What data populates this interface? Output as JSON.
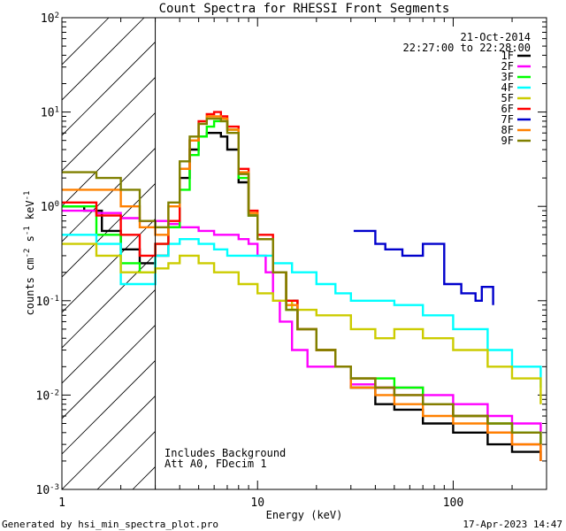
{
  "chart_data": {
    "type": "line",
    "title": "Count Spectra for RHESSI Front Segments",
    "xlabel": "Energy (keV)",
    "ylabel_main": "counts cm",
    "ylabel_sup1": "-2",
    "ylabel_mid": " s",
    "ylabel_sup2": "-1",
    "ylabel_unit": " keV",
    "ylabel_sup3": "-1",
    "xscale": "log",
    "yscale": "log",
    "xlim": [
      1,
      300
    ],
    "ylim": [
      0.001,
      100
    ],
    "x_ticks": [
      {
        "v": 1,
        "label": "1"
      },
      {
        "v": 10,
        "label": "10"
      },
      {
        "v": 100,
        "label": "100"
      }
    ],
    "y_ticks": [
      {
        "v": 100,
        "base": "10",
        "exp": "2"
      },
      {
        "v": 10,
        "base": "10",
        "exp": "1"
      },
      {
        "v": 1,
        "base": "10",
        "exp": "0"
      },
      {
        "v": 0.1,
        "base": "10",
        "exp": "-1"
      },
      {
        "v": 0.01,
        "base": "10",
        "exp": "-2"
      },
      {
        "v": 0.001,
        "base": "10",
        "exp": "-3"
      }
    ],
    "excluded_region": [
      1,
      3
    ],
    "legend_position": "top-right",
    "date": "21-Oct-2014",
    "time_range": "22:27:00 to 22:28:00",
    "notes": [
      "Includes Background",
      "Att A0, FDecim 1"
    ],
    "footer_left": "Generated by hsi_min_spectra_plot.pro",
    "footer_right": "17-Apr-2023 14:47",
    "series": [
      {
        "name": "1F",
        "color": "#000000",
        "points": [
          [
            1,
            1.0
          ],
          [
            1.3,
            0.9
          ],
          [
            1.6,
            0.55
          ],
          [
            2.0,
            0.35
          ],
          [
            2.5,
            0.25
          ],
          [
            3,
            0.3
          ],
          [
            3.5,
            0.6
          ],
          [
            4,
            2.0
          ],
          [
            4.5,
            4.0
          ],
          [
            5,
            5.5
          ],
          [
            5.5,
            6.0
          ],
          [
            6,
            6.0
          ],
          [
            6.5,
            5.5
          ],
          [
            7,
            4.0
          ],
          [
            8,
            1.8
          ],
          [
            9,
            0.8
          ],
          [
            10,
            0.45
          ],
          [
            12,
            0.2
          ],
          [
            14,
            0.1
          ],
          [
            16,
            0.05
          ],
          [
            20,
            0.03
          ],
          [
            25,
            0.02
          ],
          [
            30,
            0.012
          ],
          [
            40,
            0.008
          ],
          [
            50,
            0.007
          ],
          [
            70,
            0.005
          ],
          [
            100,
            0.004
          ],
          [
            150,
            0.003
          ],
          [
            200,
            0.0025
          ],
          [
            280,
            0.002
          ]
        ]
      },
      {
        "name": "2F",
        "color": "#ff00ff",
        "points": [
          [
            1,
            0.9
          ],
          [
            1.5,
            0.85
          ],
          [
            2,
            0.75
          ],
          [
            2.5,
            0.7
          ],
          [
            3,
            0.7
          ],
          [
            3.5,
            0.65
          ],
          [
            4,
            0.6
          ],
          [
            5,
            0.55
          ],
          [
            6,
            0.5
          ],
          [
            7,
            0.5
          ],
          [
            8,
            0.45
          ],
          [
            9,
            0.4
          ],
          [
            10,
            0.3
          ],
          [
            11,
            0.2
          ],
          [
            12,
            0.1
          ],
          [
            13,
            0.06
          ],
          [
            15,
            0.03
          ],
          [
            18,
            0.02
          ],
          [
            20,
            0.02
          ],
          [
            30,
            0.013
          ],
          [
            40,
            0.012
          ],
          [
            50,
            0.012
          ],
          [
            70,
            0.01
          ],
          [
            100,
            0.008
          ],
          [
            150,
            0.006
          ],
          [
            200,
            0.005
          ],
          [
            280,
            0.004
          ]
        ]
      },
      {
        "name": "3F",
        "color": "#00ff00",
        "points": [
          [
            1,
            1.0
          ],
          [
            1.5,
            0.5
          ],
          [
            2,
            0.25
          ],
          [
            2.5,
            0.2
          ],
          [
            3,
            0.4
          ],
          [
            3.5,
            0.6
          ],
          [
            4,
            1.5
          ],
          [
            4.5,
            3.5
          ],
          [
            5,
            5.5
          ],
          [
            5.5,
            7.0
          ],
          [
            6,
            8.0
          ],
          [
            6.5,
            8.0
          ],
          [
            7,
            6.5
          ],
          [
            8,
            2.0
          ],
          [
            9,
            0.8
          ],
          [
            10,
            0.45
          ],
          [
            12,
            0.2
          ],
          [
            14,
            0.08
          ],
          [
            16,
            0.05
          ],
          [
            20,
            0.03
          ],
          [
            25,
            0.02
          ],
          [
            30,
            0.015
          ],
          [
            40,
            0.015
          ],
          [
            50,
            0.012
          ],
          [
            70,
            0.008
          ],
          [
            100,
            0.006
          ],
          [
            150,
            0.005
          ],
          [
            200,
            0.004
          ],
          [
            280,
            0.003
          ]
        ]
      },
      {
        "name": "4F",
        "color": "#00ffff",
        "points": [
          [
            1,
            0.5
          ],
          [
            1.5,
            0.4
          ],
          [
            2,
            0.15
          ],
          [
            2.5,
            0.15
          ],
          [
            3,
            0.3
          ],
          [
            3.5,
            0.4
          ],
          [
            4,
            0.45
          ],
          [
            5,
            0.4
          ],
          [
            6,
            0.35
          ],
          [
            7,
            0.3
          ],
          [
            8,
            0.3
          ],
          [
            10,
            0.3
          ],
          [
            12,
            0.25
          ],
          [
            15,
            0.2
          ],
          [
            20,
            0.15
          ],
          [
            25,
            0.12
          ],
          [
            30,
            0.1
          ],
          [
            40,
            0.1
          ],
          [
            50,
            0.09
          ],
          [
            70,
            0.07
          ],
          [
            100,
            0.05
          ],
          [
            150,
            0.03
          ],
          [
            200,
            0.02
          ],
          [
            280,
            0.012
          ]
        ]
      },
      {
        "name": "5F",
        "color": "#cccc00",
        "points": [
          [
            1,
            0.4
          ],
          [
            1.5,
            0.3
          ],
          [
            2,
            0.2
          ],
          [
            2.5,
            0.2
          ],
          [
            3,
            0.22
          ],
          [
            3.5,
            0.25
          ],
          [
            4,
            0.3
          ],
          [
            5,
            0.25
          ],
          [
            6,
            0.2
          ],
          [
            8,
            0.15
          ],
          [
            10,
            0.12
          ],
          [
            12,
            0.1
          ],
          [
            15,
            0.08
          ],
          [
            20,
            0.07
          ],
          [
            30,
            0.05
          ],
          [
            40,
            0.04
          ],
          [
            50,
            0.05
          ],
          [
            70,
            0.04
          ],
          [
            100,
            0.03
          ],
          [
            150,
            0.02
          ],
          [
            200,
            0.015
          ],
          [
            280,
            0.008
          ]
        ]
      },
      {
        "name": "6F",
        "color": "#ff0000",
        "points": [
          [
            1,
            1.1
          ],
          [
            1.5,
            0.8
          ],
          [
            2,
            0.5
          ],
          [
            2.5,
            0.3
          ],
          [
            3,
            0.4
          ],
          [
            3.5,
            0.7
          ],
          [
            4,
            2.5
          ],
          [
            4.5,
            5.0
          ],
          [
            5,
            8.0
          ],
          [
            5.5,
            9.5
          ],
          [
            6,
            10.0
          ],
          [
            6.5,
            9.0
          ],
          [
            7,
            7.0
          ],
          [
            8,
            2.5
          ],
          [
            9,
            0.9
          ],
          [
            10,
            0.5
          ],
          [
            12,
            0.2
          ],
          [
            14,
            0.1
          ],
          [
            16,
            0.05
          ],
          [
            20,
            0.03
          ],
          [
            25,
            0.02
          ],
          [
            30,
            0.015
          ],
          [
            40,
            0.012
          ],
          [
            50,
            0.01
          ],
          [
            70,
            0.008
          ],
          [
            100,
            0.006
          ],
          [
            150,
            0.004
          ],
          [
            200,
            0.003
          ],
          [
            280,
            0.002
          ]
        ]
      },
      {
        "name": "7F",
        "color": "#0000cc",
        "points": [
          [
            31,
            0.55
          ],
          [
            32,
            0.55
          ],
          [
            40,
            0.4
          ],
          [
            45,
            0.35
          ],
          [
            55,
            0.3
          ],
          [
            60,
            0.3
          ],
          [
            70,
            0.4
          ],
          [
            90,
            0.15
          ],
          [
            110,
            0.12
          ],
          [
            130,
            0.1
          ],
          [
            140,
            0.14
          ],
          [
            160,
            0.09
          ]
        ]
      },
      {
        "name": "8F",
        "color": "#ff8000",
        "points": [
          [
            1,
            1.5
          ],
          [
            1.5,
            1.5
          ],
          [
            2,
            1.0
          ],
          [
            2.5,
            0.6
          ],
          [
            3,
            0.5
          ],
          [
            3.5,
            1.0
          ],
          [
            4,
            2.5
          ],
          [
            4.5,
            5.0
          ],
          [
            5,
            7.5
          ],
          [
            5.5,
            9.0
          ],
          [
            6,
            9.0
          ],
          [
            6.5,
            8.5
          ],
          [
            7,
            6.5
          ],
          [
            8,
            2.3
          ],
          [
            9,
            0.85
          ],
          [
            10,
            0.45
          ],
          [
            12,
            0.2
          ],
          [
            14,
            0.09
          ],
          [
            16,
            0.05
          ],
          [
            20,
            0.03
          ],
          [
            25,
            0.02
          ],
          [
            30,
            0.012
          ],
          [
            40,
            0.01
          ],
          [
            50,
            0.008
          ],
          [
            70,
            0.006
          ],
          [
            100,
            0.005
          ],
          [
            150,
            0.004
          ],
          [
            200,
            0.003
          ],
          [
            280,
            0.002
          ]
        ]
      },
      {
        "name": "9F",
        "color": "#808000",
        "points": [
          [
            1,
            2.3
          ],
          [
            1.5,
            2.0
          ],
          [
            2,
            1.5
          ],
          [
            2.5,
            0.7
          ],
          [
            3,
            0.6
          ],
          [
            3.5,
            1.1
          ],
          [
            4,
            3.0
          ],
          [
            4.5,
            5.5
          ],
          [
            5,
            7.5
          ],
          [
            5.5,
            8.5
          ],
          [
            6,
            8.5
          ],
          [
            6.5,
            8.0
          ],
          [
            7,
            6.0
          ],
          [
            8,
            2.2
          ],
          [
            9,
            0.8
          ],
          [
            10,
            0.45
          ],
          [
            12,
            0.2
          ],
          [
            14,
            0.08
          ],
          [
            16,
            0.05
          ],
          [
            20,
            0.03
          ],
          [
            25,
            0.02
          ],
          [
            30,
            0.015
          ],
          [
            40,
            0.012
          ],
          [
            50,
            0.01
          ],
          [
            70,
            0.008
          ],
          [
            100,
            0.006
          ],
          [
            150,
            0.005
          ],
          [
            200,
            0.004
          ],
          [
            280,
            0.003
          ]
        ]
      }
    ]
  }
}
